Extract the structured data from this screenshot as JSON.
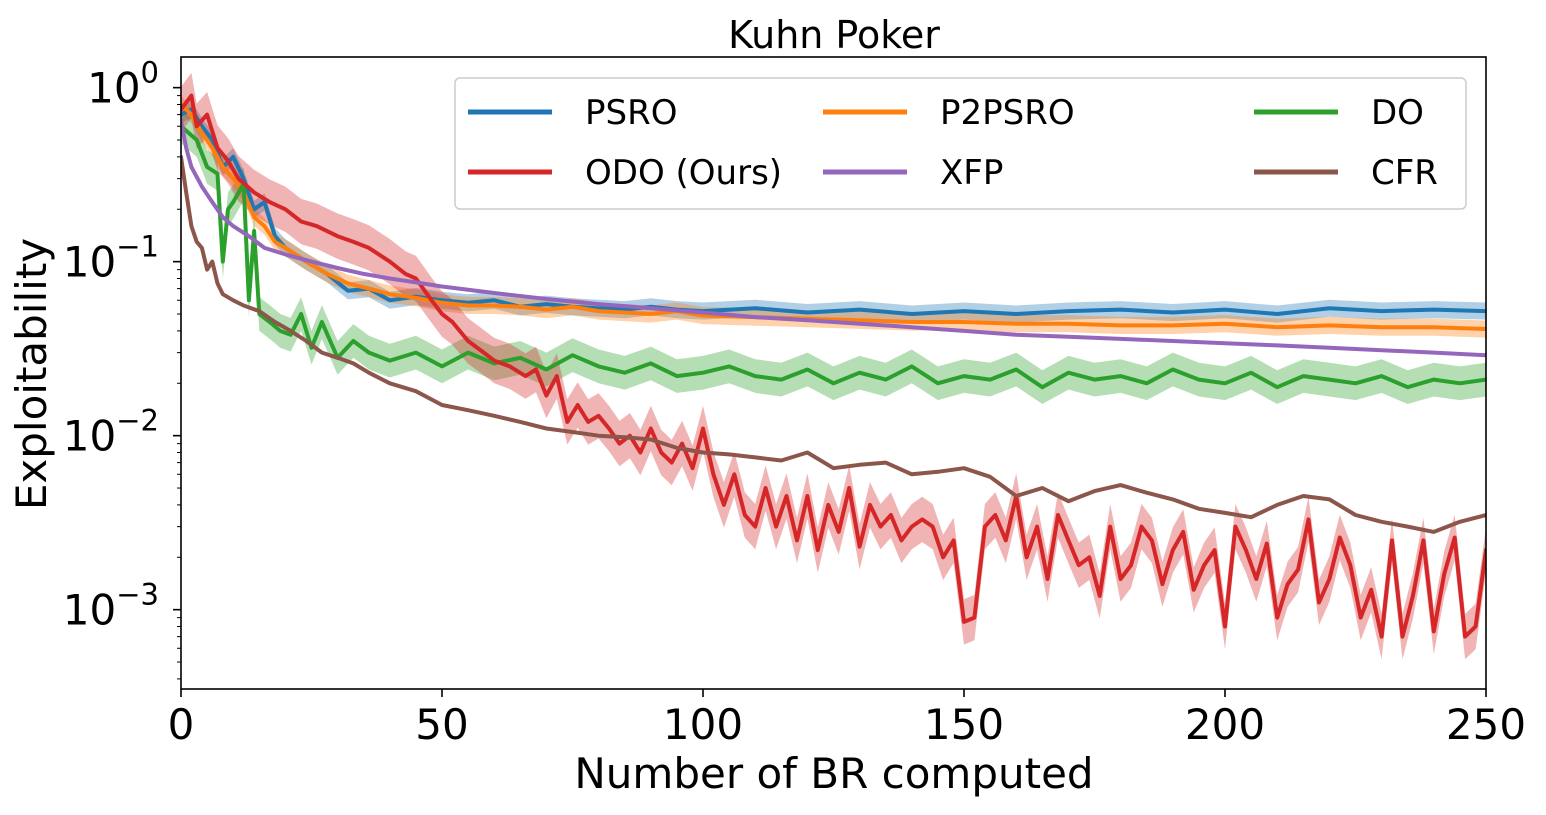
{
  "chart_data": {
    "type": "line",
    "title": "Kuhn Poker",
    "xlabel": "Number of BR computed",
    "ylabel": "Exploitability",
    "y_scale": "log",
    "xlim": [
      0,
      250
    ],
    "ylim": [
      0.00035,
      1.5
    ],
    "x_ticks": [
      {
        "value": 0,
        "label": "0"
      },
      {
        "value": 50,
        "label": "50"
      },
      {
        "value": 100,
        "label": "100"
      },
      {
        "value": 150,
        "label": "150"
      },
      {
        "value": 200,
        "label": "200"
      },
      {
        "value": 250,
        "label": "250"
      }
    ],
    "y_ticks": [
      {
        "value": 1,
        "base": "10",
        "exp": "0"
      },
      {
        "value": 0.1,
        "base": "10",
        "exp": "−1"
      },
      {
        "value": 0.01,
        "base": "10",
        "exp": "−2"
      },
      {
        "value": 0.001,
        "base": "10",
        "exp": "−3"
      }
    ],
    "grid": false,
    "legend": {
      "placement": "top-right",
      "columns": 3
    },
    "series": [
      {
        "name": "PSRO",
        "color": "#1f77b4",
        "band": 0.12,
        "x": [
          0,
          2,
          4,
          6,
          8,
          10,
          12,
          14,
          16,
          18,
          20,
          24,
          28,
          32,
          36,
          40,
          45,
          50,
          55,
          60,
          65,
          70,
          75,
          80,
          85,
          90,
          95,
          100,
          110,
          120,
          130,
          140,
          150,
          160,
          170,
          180,
          190,
          200,
          210,
          220,
          230,
          240,
          250
        ],
        "y": [
          0.7,
          0.75,
          0.6,
          0.5,
          0.35,
          0.4,
          0.3,
          0.2,
          0.22,
          0.14,
          0.12,
          0.1,
          0.085,
          0.068,
          0.07,
          0.06,
          0.063,
          0.06,
          0.058,
          0.06,
          0.055,
          0.057,
          0.055,
          0.054,
          0.053,
          0.055,
          0.053,
          0.052,
          0.054,
          0.051,
          0.053,
          0.05,
          0.052,
          0.05,
          0.052,
          0.053,
          0.051,
          0.053,
          0.05,
          0.054,
          0.052,
          0.053,
          0.052
        ]
      },
      {
        "name": "P2PSRO",
        "color": "#ff7f0e",
        "band": 0.12,
        "x": [
          0,
          2,
          4,
          6,
          8,
          10,
          12,
          14,
          16,
          18,
          20,
          24,
          28,
          32,
          36,
          40,
          45,
          50,
          55,
          60,
          65,
          70,
          75,
          80,
          85,
          90,
          95,
          100,
          110,
          120,
          130,
          140,
          150,
          160,
          170,
          180,
          190,
          200,
          210,
          220,
          230,
          240,
          250
        ],
        "y": [
          0.8,
          0.7,
          0.55,
          0.45,
          0.35,
          0.3,
          0.25,
          0.18,
          0.16,
          0.13,
          0.12,
          0.1,
          0.085,
          0.075,
          0.07,
          0.065,
          0.062,
          0.058,
          0.056,
          0.056,
          0.055,
          0.053,
          0.055,
          0.052,
          0.051,
          0.05,
          0.052,
          0.049,
          0.048,
          0.047,
          0.046,
          0.045,
          0.045,
          0.044,
          0.044,
          0.043,
          0.043,
          0.044,
          0.042,
          0.043,
          0.042,
          0.042,
          0.041
        ]
      },
      {
        "name": "DO",
        "color": "#2ca02c",
        "band": 0.25,
        "x": [
          0,
          3,
          5,
          7,
          8,
          9,
          10,
          12,
          13,
          14,
          15,
          17,
          19,
          21,
          23,
          25,
          27,
          30,
          33,
          36,
          40,
          45,
          50,
          55,
          60,
          65,
          70,
          75,
          80,
          85,
          90,
          95,
          100,
          105,
          110,
          115,
          120,
          125,
          130,
          135,
          140,
          145,
          150,
          155,
          160,
          165,
          170,
          175,
          180,
          185,
          190,
          195,
          200,
          205,
          210,
          215,
          220,
          225,
          230,
          235,
          240,
          245,
          250
        ],
        "y": [
          0.6,
          0.5,
          0.35,
          0.32,
          0.1,
          0.2,
          0.22,
          0.28,
          0.06,
          0.15,
          0.05,
          0.045,
          0.04,
          0.038,
          0.05,
          0.032,
          0.045,
          0.028,
          0.035,
          0.03,
          0.027,
          0.03,
          0.025,
          0.03,
          0.026,
          0.028,
          0.024,
          0.029,
          0.025,
          0.023,
          0.026,
          0.022,
          0.023,
          0.025,
          0.022,
          0.021,
          0.024,
          0.02,
          0.023,
          0.021,
          0.025,
          0.02,
          0.022,
          0.021,
          0.024,
          0.019,
          0.023,
          0.021,
          0.022,
          0.02,
          0.024,
          0.021,
          0.02,
          0.023,
          0.019,
          0.022,
          0.021,
          0.02,
          0.022,
          0.019,
          0.021,
          0.02,
          0.021
        ]
      },
      {
        "name": "ODO (Ours)",
        "color": "#d62728",
        "band": 0.35,
        "x": [
          0,
          2,
          3,
          5,
          7,
          9,
          11,
          14,
          17,
          20,
          23,
          26,
          30,
          33,
          36,
          40,
          43,
          45,
          48,
          50,
          52,
          55,
          58,
          60,
          63,
          66,
          68,
          70,
          72,
          74,
          76,
          78,
          80,
          82,
          84,
          86,
          88,
          90,
          92,
          94,
          96,
          98,
          100,
          102,
          104,
          106,
          108,
          110,
          112,
          114,
          116,
          118,
          120,
          122,
          124,
          126,
          128,
          130,
          132,
          134,
          136,
          138,
          140,
          142,
          144,
          146,
          148,
          150,
          152,
          154,
          156,
          158,
          160,
          162,
          164,
          166,
          168,
          170,
          172,
          174,
          176,
          178,
          180,
          182,
          184,
          186,
          188,
          190,
          192,
          194,
          196,
          198,
          200,
          202,
          204,
          206,
          208,
          210,
          212,
          214,
          216,
          218,
          220,
          222,
          224,
          226,
          228,
          230,
          232,
          234,
          236,
          238,
          240,
          242,
          244,
          246,
          248,
          250
        ],
        "y": [
          0.75,
          0.9,
          0.6,
          0.7,
          0.45,
          0.38,
          0.3,
          0.25,
          0.22,
          0.2,
          0.17,
          0.16,
          0.14,
          0.13,
          0.12,
          0.1,
          0.085,
          0.08,
          0.06,
          0.05,
          0.045,
          0.035,
          0.03,
          0.027,
          0.025,
          0.022,
          0.024,
          0.017,
          0.022,
          0.012,
          0.015,
          0.012,
          0.013,
          0.011,
          0.009,
          0.01,
          0.008,
          0.011,
          0.008,
          0.007,
          0.009,
          0.0065,
          0.011,
          0.006,
          0.004,
          0.006,
          0.0035,
          0.003,
          0.005,
          0.003,
          0.0045,
          0.0025,
          0.0045,
          0.0022,
          0.004,
          0.0028,
          0.005,
          0.0023,
          0.004,
          0.003,
          0.0035,
          0.0025,
          0.003,
          0.0033,
          0.003,
          0.002,
          0.0025,
          0.00085,
          0.0009,
          0.003,
          0.0035,
          0.0025,
          0.0045,
          0.002,
          0.003,
          0.0015,
          0.0035,
          0.0025,
          0.0018,
          0.002,
          0.0012,
          0.003,
          0.0015,
          0.0018,
          0.003,
          0.0025,
          0.0014,
          0.0022,
          0.0028,
          0.0013,
          0.0018,
          0.0022,
          0.0008,
          0.003,
          0.0022,
          0.0015,
          0.0024,
          0.0009,
          0.0014,
          0.0017,
          0.0033,
          0.0011,
          0.0015,
          0.0026,
          0.0018,
          0.0009,
          0.0013,
          0.0007,
          0.0025,
          0.0007,
          0.0012,
          0.0025,
          0.00075,
          0.0016,
          0.0026,
          0.0007,
          0.0008,
          0.0022
        ]
      },
      {
        "name": "XFP",
        "color": "#9467bd",
        "band": 0,
        "x": [
          0,
          1,
          2,
          4,
          6,
          8,
          10,
          13,
          16,
          20,
          25,
          30,
          35,
          40,
          45,
          50,
          60,
          70,
          80,
          90,
          100,
          110,
          120,
          130,
          140,
          150,
          160,
          170,
          180,
          190,
          200,
          210,
          220,
          230,
          240,
          250
        ],
        "y": [
          0.65,
          0.45,
          0.35,
          0.27,
          0.22,
          0.18,
          0.16,
          0.14,
          0.12,
          0.11,
          0.1,
          0.092,
          0.085,
          0.08,
          0.076,
          0.072,
          0.066,
          0.061,
          0.057,
          0.054,
          0.051,
          0.048,
          0.046,
          0.044,
          0.042,
          0.04,
          0.038,
          0.037,
          0.036,
          0.035,
          0.034,
          0.033,
          0.032,
          0.031,
          0.03,
          0.029
        ]
      },
      {
        "name": "CFR",
        "color": "#8c564b",
        "band": 0,
        "x": [
          0,
          1,
          2,
          3,
          4,
          5,
          6,
          7,
          8,
          10,
          12,
          15,
          18,
          21,
          24,
          27,
          30,
          33,
          36,
          40,
          45,
          50,
          55,
          60,
          65,
          70,
          75,
          80,
          85,
          90,
          95,
          100,
          105,
          110,
          115,
          120,
          125,
          130,
          135,
          140,
          145,
          150,
          155,
          160,
          165,
          170,
          175,
          180,
          185,
          190,
          195,
          200,
          205,
          210,
          215,
          220,
          225,
          230,
          235,
          240,
          245,
          250
        ],
        "y": [
          0.4,
          0.25,
          0.16,
          0.13,
          0.12,
          0.09,
          0.1,
          0.075,
          0.065,
          0.06,
          0.056,
          0.052,
          0.045,
          0.04,
          0.035,
          0.03,
          0.028,
          0.026,
          0.023,
          0.02,
          0.018,
          0.015,
          0.014,
          0.013,
          0.012,
          0.011,
          0.0105,
          0.01,
          0.0098,
          0.0095,
          0.0085,
          0.008,
          0.0078,
          0.0075,
          0.0072,
          0.008,
          0.0065,
          0.0068,
          0.007,
          0.006,
          0.0062,
          0.0065,
          0.0058,
          0.0045,
          0.005,
          0.0042,
          0.0048,
          0.0052,
          0.0047,
          0.0043,
          0.0038,
          0.0036,
          0.0034,
          0.004,
          0.0045,
          0.0043,
          0.0035,
          0.0032,
          0.003,
          0.0028,
          0.0032,
          0.0035
        ]
      }
    ]
  }
}
